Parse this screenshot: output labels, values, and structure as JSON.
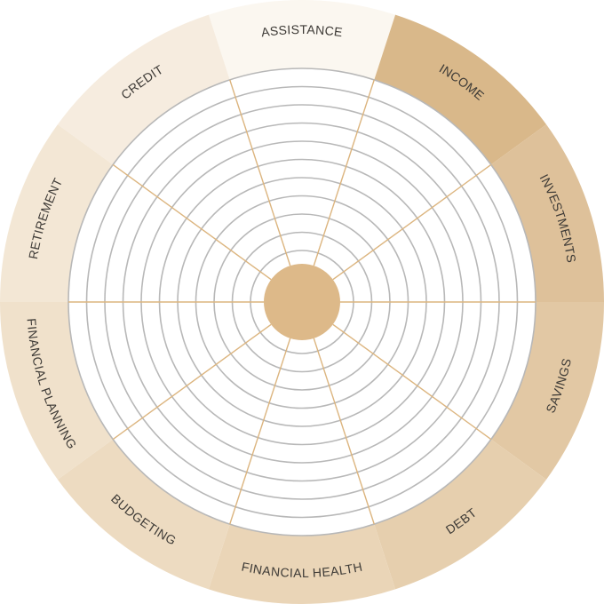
{
  "wheel": {
    "segments": [
      {
        "label": "ASSISTANCE",
        "color": "#fbf7f0"
      },
      {
        "label": "INCOME",
        "color": "#d9b88a"
      },
      {
        "label": "INVESTMENTS",
        "color": "#dec19a"
      },
      {
        "label": "SAVINGS",
        "color": "#e2c8a4"
      },
      {
        "label": "DEBT",
        "color": "#e6cfae"
      },
      {
        "label": "FINANCIAL HEALTH",
        "color": "#ead5b7"
      },
      {
        "label": "BUDGETING",
        "color": "#eddbc1"
      },
      {
        "label": "FINANCIAL PLANNING",
        "color": "#f0e1cb"
      },
      {
        "label": "RETIREMENT",
        "color": "#f3e7d5"
      },
      {
        "label": "CREDIT",
        "color": "#f6ecdf"
      }
    ],
    "ring_count": 10,
    "colors": {
      "center": "#ddb989",
      "spoke": "#dcb57f",
      "ring": "#b8b8b8",
      "inner_bg": "#ffffff",
      "label": "#3d3a36"
    }
  }
}
